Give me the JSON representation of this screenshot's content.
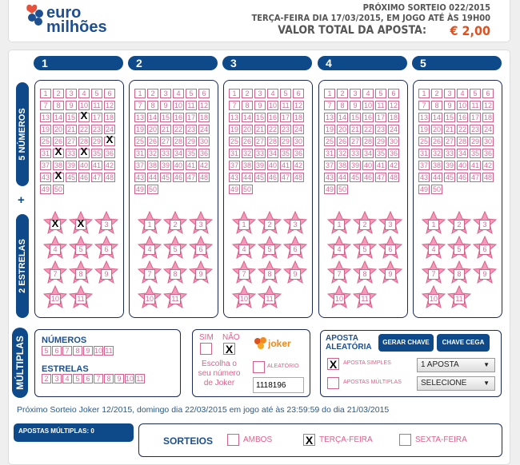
{
  "header": {
    "brand_line1": "euro",
    "brand_line2": "milhões",
    "next_draw": "PRÓXIMO SORTEIO 022/2015",
    "draw_date": "TERÇA-FEIRA DIA 17/03/2015, EM JOGO ATÉ ÀS 19H00",
    "total_label": "VALOR TOTAL DA APOSTA:",
    "total_value": "€ 2,00"
  },
  "colors": {
    "brand_blue": "#0e4a8a",
    "pink": "#e0608a",
    "price": "#e0501e"
  },
  "side_labels": {
    "numbers": "5 NÚMEROS",
    "plus": "+",
    "stars": "2 ESTRELAS",
    "multiples": "MÚLTIPLAS"
  },
  "grid_numbers": [
    1,
    2,
    3,
    4,
    5,
    6,
    7,
    8,
    9,
    10,
    11,
    12,
    13,
    14,
    15,
    16,
    17,
    18,
    19,
    20,
    21,
    22,
    23,
    24,
    25,
    26,
    27,
    28,
    29,
    30,
    31,
    32,
    33,
    34,
    35,
    36,
    37,
    38,
    39,
    40,
    41,
    42,
    43,
    44,
    45,
    46,
    47,
    48,
    49,
    50
  ],
  "star_numbers": [
    1,
    2,
    3,
    4,
    5,
    6,
    7,
    8,
    9,
    10,
    11
  ],
  "panels": [
    {
      "label": "1",
      "marked_numbers": [
        16,
        30,
        32,
        34,
        44
      ],
      "marked_stars": [
        1,
        2
      ]
    },
    {
      "label": "2",
      "marked_numbers": [],
      "marked_stars": []
    },
    {
      "label": "3",
      "marked_numbers": [],
      "marked_stars": []
    },
    {
      "label": "4",
      "marked_numbers": [],
      "marked_stars": []
    },
    {
      "label": "5",
      "marked_numbers": [],
      "marked_stars": []
    }
  ],
  "multiples": {
    "numbers_label": "NÚMEROS",
    "numbers": [
      "5",
      "6",
      "7",
      "8",
      "9",
      "10",
      "11"
    ],
    "stars_label": "ESTRELAS",
    "stars": [
      "2",
      "3",
      "4",
      "5",
      "6",
      "7",
      "8",
      "9",
      "10",
      "11"
    ]
  },
  "joker": {
    "yes": "SIM",
    "no": "NÃO",
    "yes_checked": false,
    "no_checked": true,
    "logo": "joker",
    "choose_label": "Escolha o seu número de Joker",
    "random_label": "ALEATÓRIO",
    "number": "1118196"
  },
  "random_bet": {
    "title": "APOSTA ALEATÓRIA",
    "generate": "GERAR CHAVE",
    "blind": "CHAVE CEGA",
    "simple_label": "APOSTA SIMPLES",
    "simple_checked": true,
    "simple_select": "1 APOSTA",
    "multiple_label": "APOSTAS MÚLTIPLAS",
    "multiple_checked": false,
    "multiple_select": "SELECIONE"
  },
  "joker_info": "Próximo Sorteio Joker 12/2015, domingo dia 22/03/2015 em jogo até às 23:59:59 do dia 21/03/2015",
  "multiple_bets": "APOSTAS MÚLTIPLAS: 0",
  "draws": {
    "label": "SORTEIOS",
    "options": [
      {
        "label": "AMBOS",
        "checked": false
      },
      {
        "label": "TERÇA-FEIRA",
        "checked": true
      },
      {
        "label": "SEXTA-FEIRA",
        "checked": false
      }
    ]
  }
}
